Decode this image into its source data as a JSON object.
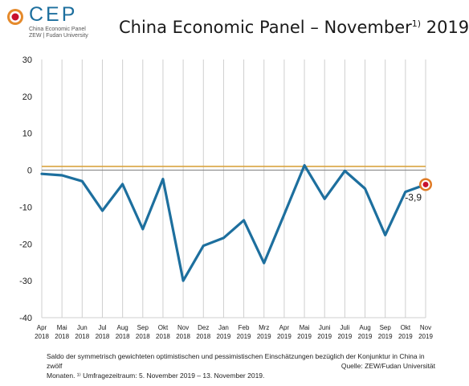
{
  "logo": {
    "name": "CEP",
    "line1": "China Economic Panel",
    "line2": "ZEW | Fudan University"
  },
  "title": {
    "main": "China Economic Panel – November",
    "sup": "1)",
    "year": " 2019"
  },
  "footer": {
    "line1": "Saldo der symmetrisch gewichteten optimistischen und pessimistischen Einschätzungen bezüglich der Konjunktur in China in zwölf",
    "line2": "Monaten. ¹⁾ Umfragezeitraum: 5. November 2019 – 13. November 2019.",
    "source": "Quelle: ZEW/Fudan Universität"
  },
  "chart_data": {
    "type": "line",
    "categories": [
      [
        "Apr",
        "2018"
      ],
      [
        "Mai",
        "2018"
      ],
      [
        "Jun",
        "2018"
      ],
      [
        "Jul",
        "2018"
      ],
      [
        "Aug",
        "2018"
      ],
      [
        "Sep",
        "2018"
      ],
      [
        "Okt",
        "2018"
      ],
      [
        "Nov",
        "2018"
      ],
      [
        "Dez",
        "2018"
      ],
      [
        "Jan",
        "2019"
      ],
      [
        "Feb",
        "2019"
      ],
      [
        "Mrz",
        "2019"
      ],
      [
        "Apr",
        "2019"
      ],
      [
        "Mai",
        "2019"
      ],
      [
        "Juni",
        "2019"
      ],
      [
        "Juli",
        "2019"
      ],
      [
        "Aug",
        "2019"
      ],
      [
        "Sep",
        "2019"
      ],
      [
        "Okt",
        "2019"
      ],
      [
        "Nov",
        "2019"
      ]
    ],
    "values": [
      -1.0,
      -1.4,
      -3.0,
      -11.0,
      -3.8,
      -16.0,
      -2.4,
      -30.0,
      -20.5,
      -18.4,
      -13.6,
      -25.2,
      -12.0,
      1.3,
      -7.8,
      -0.2,
      -5.0,
      -17.6,
      -5.9,
      -3.9
    ],
    "reference_line": 1.0,
    "zero_line": 0,
    "ylim": [
      -40,
      30
    ],
    "yticks": [
      30,
      20,
      10,
      0,
      -10,
      -20,
      -30,
      -40
    ],
    "last_label": "-3,9",
    "grid": true,
    "colors": {
      "series": "#1d6f9e",
      "reference": "#d9a441",
      "zero": "#888888",
      "grid": "#cfcfcf",
      "marker_outer": "#e07b25",
      "marker_inner": "#c8102e"
    }
  }
}
